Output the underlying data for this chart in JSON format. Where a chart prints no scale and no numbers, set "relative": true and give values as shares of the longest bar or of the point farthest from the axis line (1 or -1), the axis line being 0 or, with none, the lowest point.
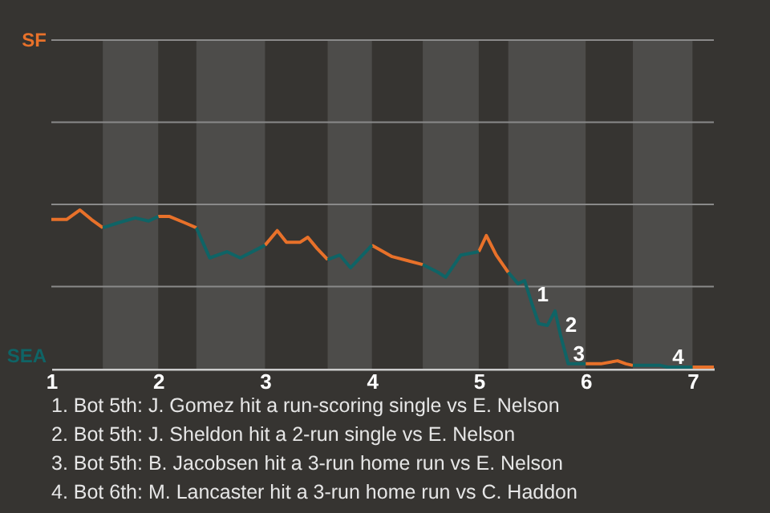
{
  "chart_data": {
    "type": "line",
    "relative": true,
    "x": [
      1,
      1.143,
      1.268,
      1.375,
      1.482,
      1.625,
      1.786,
      1.911,
      2,
      2.107,
      2.25,
      2.357,
      2.482,
      2.643,
      2.768,
      3,
      3.114,
      3.2,
      3.329,
      3.4,
      3.486,
      3.586,
      3.7,
      3.8,
      4,
      4.19,
      4.476,
      4.619,
      4.69,
      4.833,
      5,
      5.071,
      5.163,
      5.276,
      5.367,
      5.429,
      5.5,
      5.561,
      5.643,
      5.714,
      5.765,
      5.837,
      6,
      6.143,
      6.299,
      6.377,
      6.442,
      6.701,
      6.766,
      7,
      7.2
    ],
    "series": [
      {
        "color": "#e8712a",
        "values": [
          0.94,
          0.94,
          1,
          0.94,
          0.888,
          null,
          null,
          null,
          0.959,
          0.959,
          0.919,
          0.888,
          null,
          null,
          null,
          0.778,
          0.87,
          0.797,
          0.797,
          0.828,
          0.758,
          0.687,
          null,
          null,
          0.778,
          0.706,
          0.656,
          null,
          null,
          null,
          0.737,
          0.839,
          0.716,
          0.607,
          null,
          null,
          null,
          null,
          null,
          null,
          null,
          null,
          0.031,
          0.031,
          0.05,
          0.031,
          0.021,
          null,
          null,
          0.01,
          0.01
        ]
      },
      {
        "color": "#0f6466",
        "values": [
          null,
          null,
          null,
          null,
          0.888,
          0.919,
          0.95,
          0.93,
          0.959,
          null,
          null,
          0.888,
          0.698,
          0.737,
          0.698,
          0.778,
          null,
          null,
          null,
          null,
          null,
          0.687,
          0.716,
          0.636,
          0.778,
          null,
          0.656,
          0.607,
          0.576,
          0.716,
          0.737,
          null,
          null,
          0.607,
          0.536,
          0.555,
          0.404,
          0.284,
          0.273,
          0.364,
          0.211,
          0.031,
          0.031,
          null,
          null,
          null,
          0.021,
          0.021,
          0.01,
          0.01,
          null
        ]
      }
    ],
    "xlim": [
      1,
      7.2
    ],
    "xticks": [
      1,
      2,
      3,
      4,
      5,
      6,
      7
    ],
    "ref_lines": [
      {
        "axis": "y",
        "value": 0.518,
        "label": null,
        "color": "#8a8a8a",
        "line_style": "solid"
      },
      {
        "axis": "y",
        "value": 1.035,
        "label": null,
        "color": "#8a8a8a",
        "line_style": "solid"
      },
      {
        "axis": "y",
        "value": 1.553,
        "label": null,
        "color": "#8a8a8a",
        "line_style": "solid"
      },
      {
        "axis": "y",
        "value": 2.07,
        "label": null,
        "color": "#8a8a8a",
        "line_style": "solid"
      }
    ],
    "marker": "none",
    "line_style": "solid",
    "bands": [
      {
        "axis": "x",
        "from": 1.482,
        "to": 2,
        "label": null,
        "color": "#4d4c4a"
      },
      {
        "axis": "x",
        "from": 2.357,
        "to": 3,
        "label": null,
        "color": "#4d4c4a"
      },
      {
        "axis": "x",
        "from": 3.586,
        "to": 4,
        "label": null,
        "color": "#4d4c4a"
      },
      {
        "axis": "x",
        "from": 4.476,
        "to": 5,
        "label": null,
        "color": "#4d4c4a"
      },
      {
        "axis": "x",
        "from": 5.276,
        "to": 6,
        "label": null,
        "color": "#4d4c4a"
      },
      {
        "axis": "x",
        "from": 6.442,
        "to": 7,
        "label": null,
        "color": "#4d4c4a"
      }
    ],
    "annotations": [
      "SF",
      "SEA",
      {
        "text": "1",
        "x": 5.5,
        "y": 0.404
      },
      {
        "text": "2",
        "x": 5.765,
        "y": 0.211
      },
      {
        "text": "3",
        "x": 5.837,
        "y": 0.031
      },
      {
        "text": "4",
        "x": 6.766,
        "y": 0.01
      },
      "1. Bot 5th: J. Gomez hit a run-scoring single vs E. Nelson",
      "2. Bot 5th: J. Sheldon hit a 2-run single vs E. Nelson",
      "3. Bot 5th: B. Jacobsen hit a 3-run home run vs E. Nelson",
      "4. Bot 6th: M. Lancaster hit a 3-run home run vs C. Haddon"
    ]
  }
}
